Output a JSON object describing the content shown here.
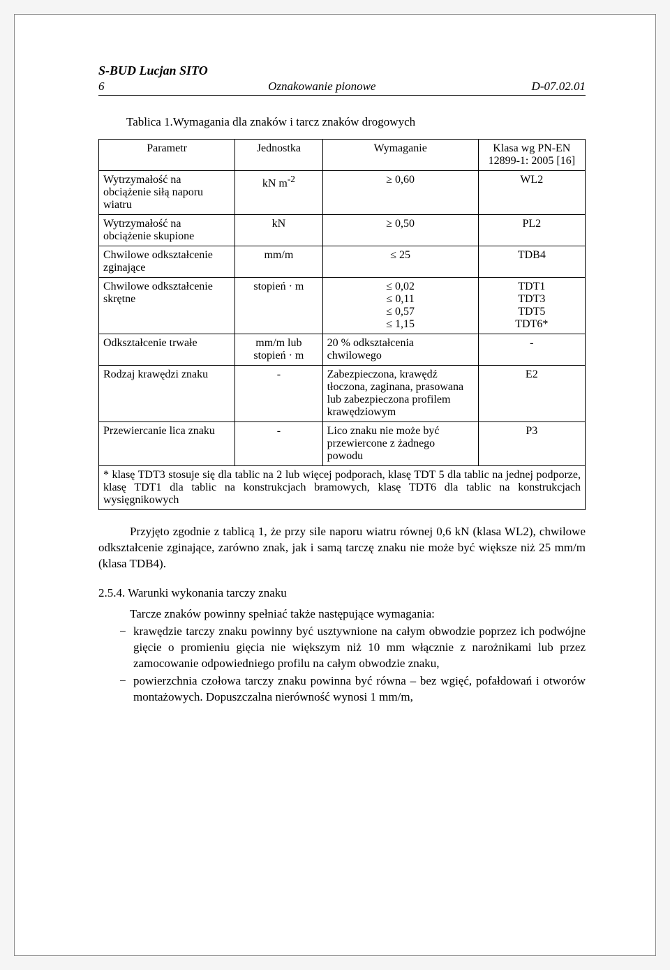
{
  "header": {
    "company": "S-BUD Lucjan SITO",
    "page_num": "6",
    "doc_title": "Oznakowanie pionowe",
    "doc_code": "D-07.02.01"
  },
  "table_title": "Tablica 1.Wymagania dla znaków i tarcz znaków drogowych",
  "table": {
    "headers": [
      "Parametr",
      "Jednostka",
      "Wymaganie",
      "Klasa wg PN-EN 12899-1: 2005 [16]"
    ],
    "rows": [
      {
        "param": "Wytrzymałość na obciążenie siłą naporu wiatru",
        "unit_html": "kN m<sup>-2</sup>",
        "req": "≥ 0,60",
        "klass": "WL2"
      },
      {
        "param": "Wytrzymałość na obciążenie skupione",
        "unit": "kN",
        "req": "≥ 0,50",
        "klass": "PL2"
      },
      {
        "param": "Chwilowe odkształcenie zginające",
        "unit": "mm/m",
        "req": "≤ 25",
        "klass": "TDB4"
      },
      {
        "param": "Chwilowe odkształcenie skrętne",
        "unit": "stopień · m",
        "req_html": "≤ 0,02<br>≤ 0,11<br>≤ 0,57<br>≤ 1,15",
        "klass_html": "TDT1<br>TDT3<br>TDT5<br>TDT6*"
      },
      {
        "param": "Odkształcenie trwałe",
        "unit_html": "mm/m  lub<br>stopień · m",
        "req_html": "20 % odkształcenia<br>chwilowego",
        "klass": "-"
      },
      {
        "param": "Rodzaj krawędzi znaku",
        "unit": "-",
        "req_html": "Zabezpieczona, krawędź tłoczona, zaginana, prasowana lub zabezpieczona profilem krawędziowym",
        "klass": "E2"
      },
      {
        "param": "Przewiercanie lica znaku",
        "unit": "-",
        "req_html": "Lico znaku nie może być przewiercone z żadnego powodu",
        "klass": "P3"
      }
    ],
    "footnote": "* klasę TDT3 stosuje się dla tablic na 2 lub więcej podporach, klasę TDT 5 dla tablic na jednej podporze, klasę TDT1 dla tablic na konstrukcjach bramowych, klasę TDT6 dla tablic na konstrukcjach wysięgnikowych"
  },
  "para1": "Przyjęto zgodnie z tablicą 1, że przy sile naporu wiatru równej 0,6 kN (klasa WL2), chwilowe odkształcenie zginające, zarówno znak, jak i samą tarczę znaku nie może być większe niż 25 mm/m (klasa TDB4).",
  "subsection": "2.5.4. Warunki wykonania tarczy znaku",
  "intro": "Tarcze znaków powinny spełniać także następujące wymagania:",
  "bullets": [
    "krawędzie tarczy  znaku powinny być usztywnione na całym obwodzie poprzez ich podwójne gięcie o promieniu gięcia nie większym niż 10 mm włącznie z narożnikami lub przez zamocowanie odpowiedniego profilu na całym obwodzie znaku,",
    "powierzchnia czołowa tarczy znaku powinna być równa – bez wgięć, pofałdowań i otworów montażowych. Dopuszczalna nierówność wynosi 1 mm/m,"
  ]
}
